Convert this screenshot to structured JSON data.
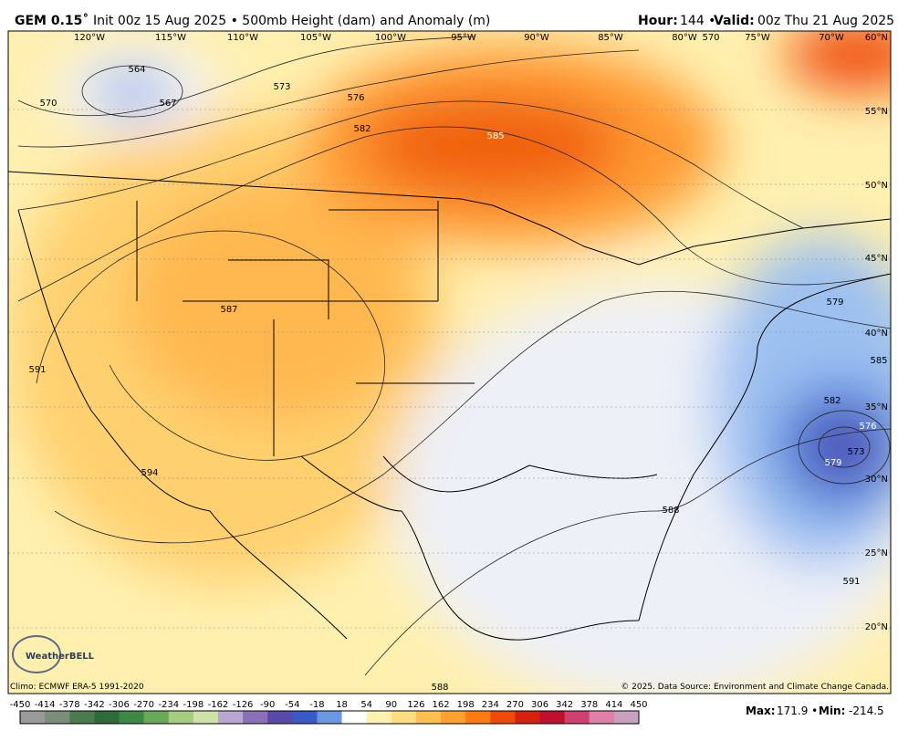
{
  "header": {
    "model": "GEM 0.15˚",
    "title": "Init 00z 15 Aug 2025 • 500mb Height (dam) and Anomaly (m)",
    "hour_label": "Hour:",
    "hour": "144 •",
    "valid_label": "Valid:",
    "valid": "00z Thu 21 Aug 2025"
  },
  "map": {
    "longitudes": [
      "120°W",
      "115°W",
      "110°W",
      "105°W",
      "100°W",
      "95°W",
      "90°W",
      "85°W",
      "80°W",
      "75°W",
      "70°W"
    ],
    "latitudes": [
      "60°N",
      "55°N",
      "50°N",
      "45°N",
      "40°N",
      "35°N",
      "30°N",
      "25°N",
      "20°N"
    ],
    "contour_labels": [
      "564",
      "567",
      "570",
      "573",
      "576",
      "582",
      "585",
      "587",
      "591",
      "594",
      "579",
      "585",
      "582",
      "576",
      "573",
      "579",
      "588",
      "588",
      "591",
      "570"
    ],
    "logo": "WeatherBELL"
  },
  "footer": {
    "climo": "Climo: ECMWF ERA-5 1991-2020",
    "copyright": "© 2025. Data Source: Environment and Climate Change Canada.",
    "max_label": "Max:",
    "max": "171.9 •",
    "min_label": "Min:",
    "min": "-214.5"
  },
  "colorbar": {
    "ticks": [
      -450,
      -414,
      -378,
      -342,
      -306,
      -270,
      -234,
      -198,
      -162,
      -126,
      -90,
      -54,
      -18,
      18,
      54,
      90,
      126,
      162,
      198,
      234,
      270,
      306,
      342,
      378,
      414,
      450
    ],
    "colors": [
      "#9a9a9a",
      "#7a8e7a",
      "#4e7a52",
      "#2e6a3a",
      "#3d8a48",
      "#6aa85a",
      "#a6cc80",
      "#cfe0a8",
      "#b8a8d0",
      "#8a70b8",
      "#5a4aa8",
      "#3a5ac8",
      "#6a98e0",
      "#ffffff",
      "#fff2b0",
      "#ffdd80",
      "#ffc050",
      "#ffa030",
      "#ff7a10",
      "#f04a0a",
      "#d82010",
      "#c01030",
      "#d04070",
      "#e080a8",
      "#c8a0c0"
    ]
  }
}
